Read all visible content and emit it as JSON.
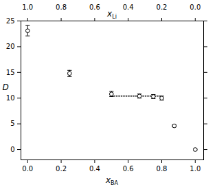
{
  "chart_data": {
    "type": "scatter",
    "xlabel": {
      "text": "x",
      "subscript": "BA"
    },
    "ylabel": "D",
    "x2label": {
      "text": "x",
      "subscript": "Li"
    },
    "x": [
      0,
      0.25,
      0.5,
      0.667,
      0.75,
      0.8,
      0.875,
      1.0
    ],
    "values": [
      23.1,
      14.8,
      10.8,
      10.4,
      10.3,
      10.0,
      4.6,
      0.0
    ],
    "errors": [
      1.0,
      0.6,
      0.5,
      0.4,
      0.4,
      0.4,
      0.2,
      0.1
    ],
    "color": "#000000",
    "marker": "circle",
    "xlim": [
      -0.04,
      1.05
    ],
    "xticks": [
      0,
      0.2,
      0.4,
      0.6,
      0.8,
      1
    ],
    "x2lim": [
      1.04,
      -0.05
    ],
    "x2ticks": [
      {
        "value": 1.0,
        "label": "1.0"
      },
      {
        "value": 0.8,
        "label": "0.8"
      },
      {
        "value": 0.6,
        "label": "0.6"
      },
      {
        "value": 0.4,
        "label": "0.4"
      },
      {
        "value": 0.2,
        "label": "0.2"
      },
      {
        "value": 0.0,
        "label": "0.0"
      }
    ],
    "ylim": [
      -2,
      25
    ],
    "yticks": [
      0,
      5,
      10,
      15,
      20,
      25
    ],
    "reference_line": {
      "x": [
        0.5,
        0.8
      ],
      "y": 10.4,
      "line_style": "dotted"
    },
    "grid": false
  }
}
